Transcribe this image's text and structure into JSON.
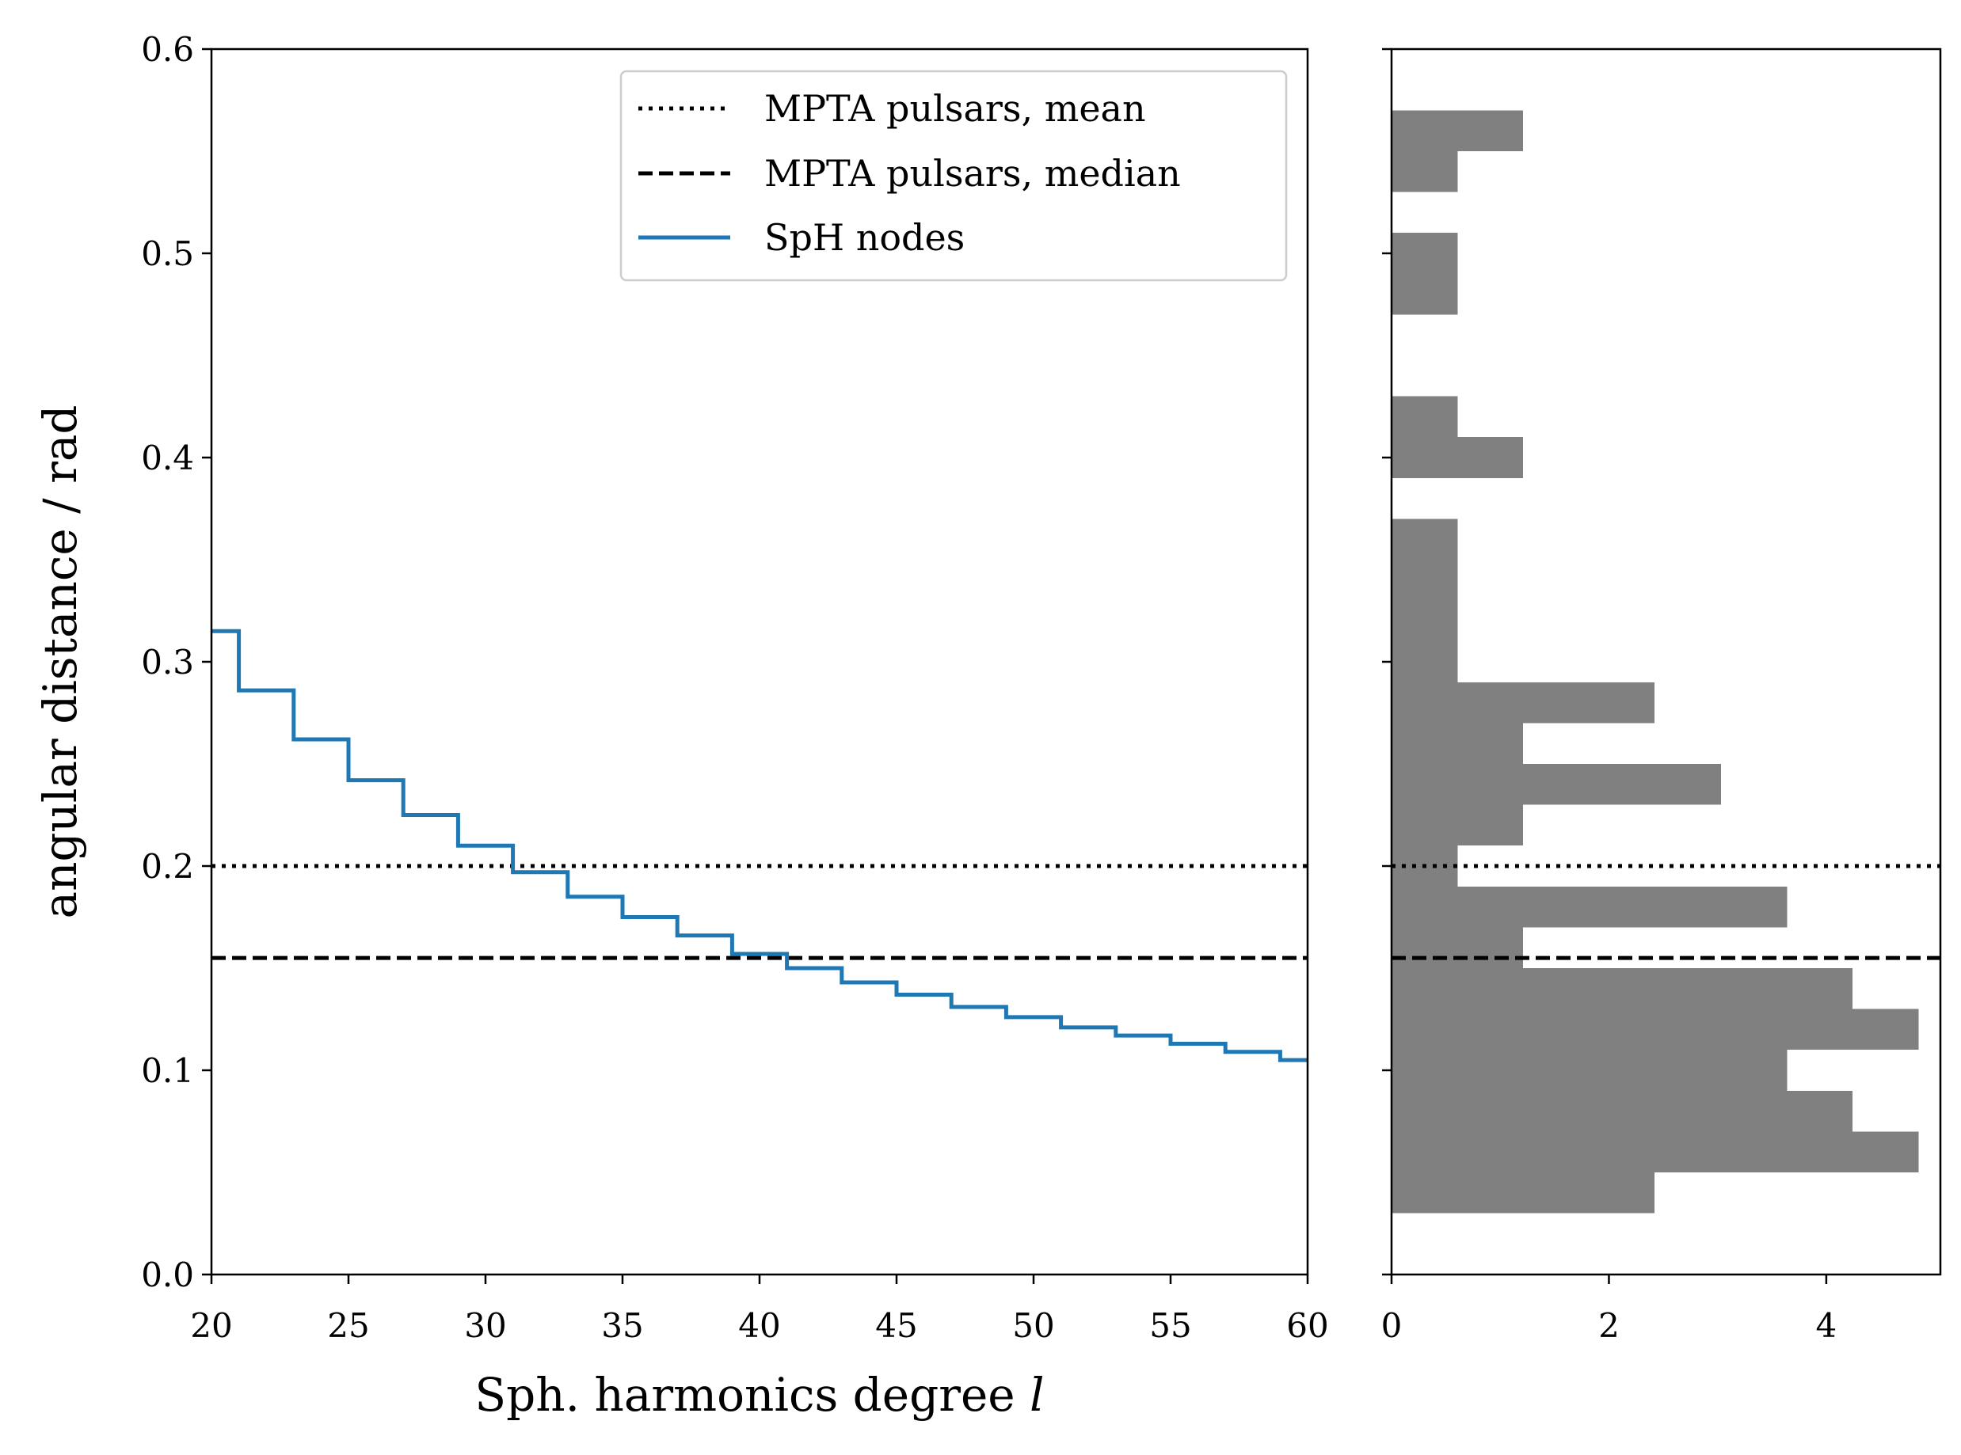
{
  "chart_data": [
    {
      "type": "line",
      "name": "left-panel",
      "xlabel": "Sph. harmonics degree ",
      "xlabel_italic": "l",
      "ylabel": "angular distance / rad",
      "xlim": [
        20,
        60
      ],
      "ylim": [
        0.0,
        0.6
      ],
      "xticks": [
        20,
        25,
        30,
        35,
        40,
        45,
        50,
        55,
        60
      ],
      "xtick_labels": [
        "20",
        "25",
        "30",
        "35",
        "40",
        "45",
        "50",
        "55",
        "60"
      ],
      "yticks": [
        0.0,
        0.1,
        0.2,
        0.3,
        0.4,
        0.5,
        0.6
      ],
      "ytick_labels": [
        "0.0",
        "0.1",
        "0.2",
        "0.3",
        "0.4",
        "0.5",
        "0.6"
      ],
      "legend_position": "top-right",
      "series": [
        {
          "name": "SpH nodes",
          "color": "#1f77b4",
          "style": "steps",
          "x": [
            20,
            21,
            22,
            23,
            24,
            25,
            26,
            27,
            28,
            29,
            30,
            31,
            32,
            33,
            34,
            35,
            36,
            37,
            38,
            39,
            40,
            41,
            42,
            43,
            44,
            45,
            46,
            47,
            48,
            49,
            50,
            51,
            52,
            53,
            54,
            55,
            56,
            57,
            58,
            59,
            60
          ],
          "values": [
            0.315,
            0.286,
            0.286,
            0.262,
            0.262,
            0.242,
            0.242,
            0.225,
            0.225,
            0.21,
            0.21,
            0.197,
            0.197,
            0.185,
            0.185,
            0.175,
            0.175,
            0.166,
            0.166,
            0.157,
            0.157,
            0.15,
            0.15,
            0.143,
            0.143,
            0.137,
            0.137,
            0.131,
            0.131,
            0.126,
            0.126,
            0.121,
            0.121,
            0.117,
            0.117,
            0.113,
            0.113,
            0.109,
            0.109,
            0.105,
            0.105
          ]
        }
      ],
      "reference_lines": [
        {
          "name": "MPTA pulsars, mean",
          "y": 0.2,
          "style": "dotted",
          "color": "#000000"
        },
        {
          "name": "MPTA pulsars, median",
          "y": 0.155,
          "style": "dashed",
          "color": "#000000"
        }
      ],
      "legend": [
        "MPTA pulsars, mean",
        "MPTA pulsars, median",
        "SpH nodes"
      ]
    },
    {
      "type": "histogram",
      "name": "right-panel",
      "orientation": "horizontal",
      "color": "#808080",
      "xlim": [
        0,
        5.05
      ],
      "ylim": [
        0.0,
        0.6
      ],
      "xticks": [
        0,
        2,
        4
      ],
      "xtick_labels": [
        "0",
        "2",
        "4"
      ],
      "bin_width": 0.02,
      "bin_starts": [
        0.03,
        0.05,
        0.07,
        0.09,
        0.11,
        0.13,
        0.15,
        0.17,
        0.19,
        0.21,
        0.23,
        0.25,
        0.27,
        0.29,
        0.31,
        0.33,
        0.35,
        0.39,
        0.41,
        0.47,
        0.49,
        0.53,
        0.55
      ],
      "values": [
        2.42,
        4.85,
        4.24,
        3.64,
        4.85,
        4.24,
        1.21,
        3.64,
        0.61,
        1.21,
        3.03,
        1.21,
        2.42,
        0.61,
        0.61,
        0.61,
        0.61,
        1.21,
        0.61,
        0.61,
        0.61,
        0.61,
        1.21
      ],
      "reference_lines": [
        {
          "name": "MPTA pulsars, mean",
          "y": 0.2,
          "style": "dotted",
          "color": "#000000"
        },
        {
          "name": "MPTA pulsars, median",
          "y": 0.155,
          "style": "dashed",
          "color": "#000000"
        }
      ]
    }
  ]
}
